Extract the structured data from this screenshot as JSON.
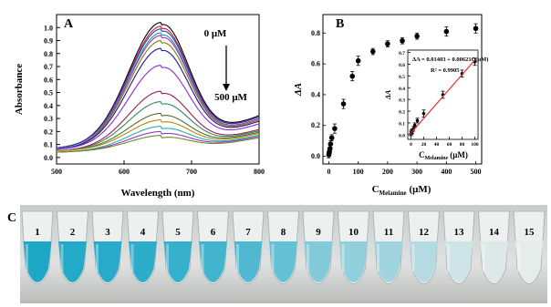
{
  "figure": {
    "panel_labels": [
      "A",
      "B",
      "C"
    ],
    "tubes": {
      "labels": [
        "1",
        "2",
        "3",
        "4",
        "5",
        "6",
        "7",
        "8",
        "9",
        "10",
        "11",
        "12",
        "13",
        "14",
        "15"
      ],
      "blue_level": [
        1.0,
        0.97,
        0.95,
        0.92,
        0.88,
        0.82,
        0.75,
        0.65,
        0.5,
        0.42,
        0.35,
        0.25,
        0.12,
        0.05,
        0.0
      ]
    }
  },
  "chart_data": [
    {
      "panel": "A",
      "type": "line",
      "xlabel": "Wavelength (nm)",
      "ylabel": "Absorbance",
      "xlim": [
        500,
        800
      ],
      "ylim": [
        -0.05,
        1.1
      ],
      "xticks": [
        500,
        600,
        700,
        800
      ],
      "yticks": [
        0.0,
        0.1,
        0.2,
        0.3,
        0.4,
        0.5,
        0.6,
        0.7,
        0.8,
        0.9,
        1.0
      ],
      "annotations": {
        "top": "0 μM",
        "bottom": "500 μM"
      },
      "peak_wavelength": 655,
      "series": [
        {
          "baseline": 0.07,
          "peak": 1.02,
          "tail": 0.3,
          "color": "#000000"
        },
        {
          "baseline": 0.07,
          "peak": 0.99,
          "tail": 0.29,
          "color": "#d11a2a"
        },
        {
          "baseline": 0.07,
          "peak": 0.97,
          "tail": 0.29,
          "color": "#1f3fbf"
        },
        {
          "baseline": 0.06,
          "peak": 0.94,
          "tail": 0.28,
          "color": "#0aa0a0"
        },
        {
          "baseline": 0.06,
          "peak": 0.92,
          "tail": 0.28,
          "color": "#c02ac0"
        },
        {
          "baseline": 0.06,
          "peak": 0.88,
          "tail": 0.27,
          "color": "#808000"
        },
        {
          "baseline": 0.06,
          "peak": 0.82,
          "tail": 0.26,
          "color": "#18188a"
        },
        {
          "baseline": 0.06,
          "peak": 0.69,
          "tail": 0.24,
          "color": "#8a2be2"
        },
        {
          "baseline": 0.05,
          "peak": 0.49,
          "tail": 0.2,
          "color": "#a0185a"
        },
        {
          "baseline": 0.05,
          "peak": 0.41,
          "tail": 0.19,
          "color": "#2e8b57"
        },
        {
          "baseline": 0.05,
          "peak": 0.32,
          "tail": 0.18,
          "color": "#556b2f"
        },
        {
          "baseline": 0.05,
          "peak": 0.27,
          "tail": 0.17,
          "color": "#b8860b"
        },
        {
          "baseline": 0.04,
          "peak": 0.22,
          "tail": 0.16,
          "color": "#20b2aa"
        },
        {
          "baseline": 0.04,
          "peak": 0.18,
          "tail": 0.15,
          "color": "#9932cc"
        },
        {
          "baseline": 0.04,
          "peak": 0.15,
          "tail": 0.14,
          "color": "#6b8e23"
        }
      ]
    },
    {
      "panel": "B",
      "type": "scatter",
      "xlabel_main": "C",
      "xlabel_sub": "Melamine",
      "xlabel_unit": "(μM)",
      "ylabel": "ΔA",
      "xlim": [
        -20,
        520
      ],
      "ylim": [
        -0.05,
        0.92
      ],
      "xticks": [
        0,
        100,
        200,
        300,
        400,
        500
      ],
      "yticks": [
        0.0,
        0.2,
        0.4,
        0.6,
        0.8
      ],
      "x": [
        0,
        1,
        2,
        4,
        6,
        10,
        20,
        50,
        80,
        100,
        150,
        200,
        250,
        300,
        400,
        500
      ],
      "y": [
        0.01,
        0.02,
        0.03,
        0.05,
        0.08,
        0.12,
        0.18,
        0.34,
        0.52,
        0.62,
        0.68,
        0.73,
        0.75,
        0.78,
        0.81,
        0.83
      ],
      "err": [
        0.02,
        0.02,
        0.02,
        0.02,
        0.02,
        0.02,
        0.03,
        0.03,
        0.03,
        0.03,
        0.02,
        0.02,
        0.02,
        0.02,
        0.03,
        0.03
      ],
      "inset": {
        "type": "scatter",
        "equation": "ΔA = 0.01403 + 0.00621C(μM)",
        "r2": "R² = 0.9905",
        "xlabel_main": "C",
        "xlabel_sub": "Melamine",
        "xlabel_unit": "(μM)",
        "ylabel": "ΔA",
        "xlim": [
          -5,
          105
        ],
        "ylim": [
          -0.04,
          0.72
        ],
        "xticks": [
          0,
          20,
          40,
          60,
          80,
          100
        ],
        "yticks": [
          0.0,
          0.1,
          0.2,
          0.3,
          0.4,
          0.5,
          0.6,
          0.7
        ],
        "x": [
          0,
          1,
          2,
          4,
          6,
          10,
          20,
          50,
          80,
          100
        ],
        "y": [
          0.01,
          0.02,
          0.03,
          0.05,
          0.08,
          0.12,
          0.18,
          0.34,
          0.52,
          0.62
        ],
        "err": [
          0.02,
          0.02,
          0.02,
          0.02,
          0.02,
          0.02,
          0.03,
          0.03,
          0.03,
          0.03
        ],
        "fit": {
          "intercept": 0.01403,
          "slope": 0.00621,
          "color": "#e0302a"
        }
      }
    }
  ]
}
